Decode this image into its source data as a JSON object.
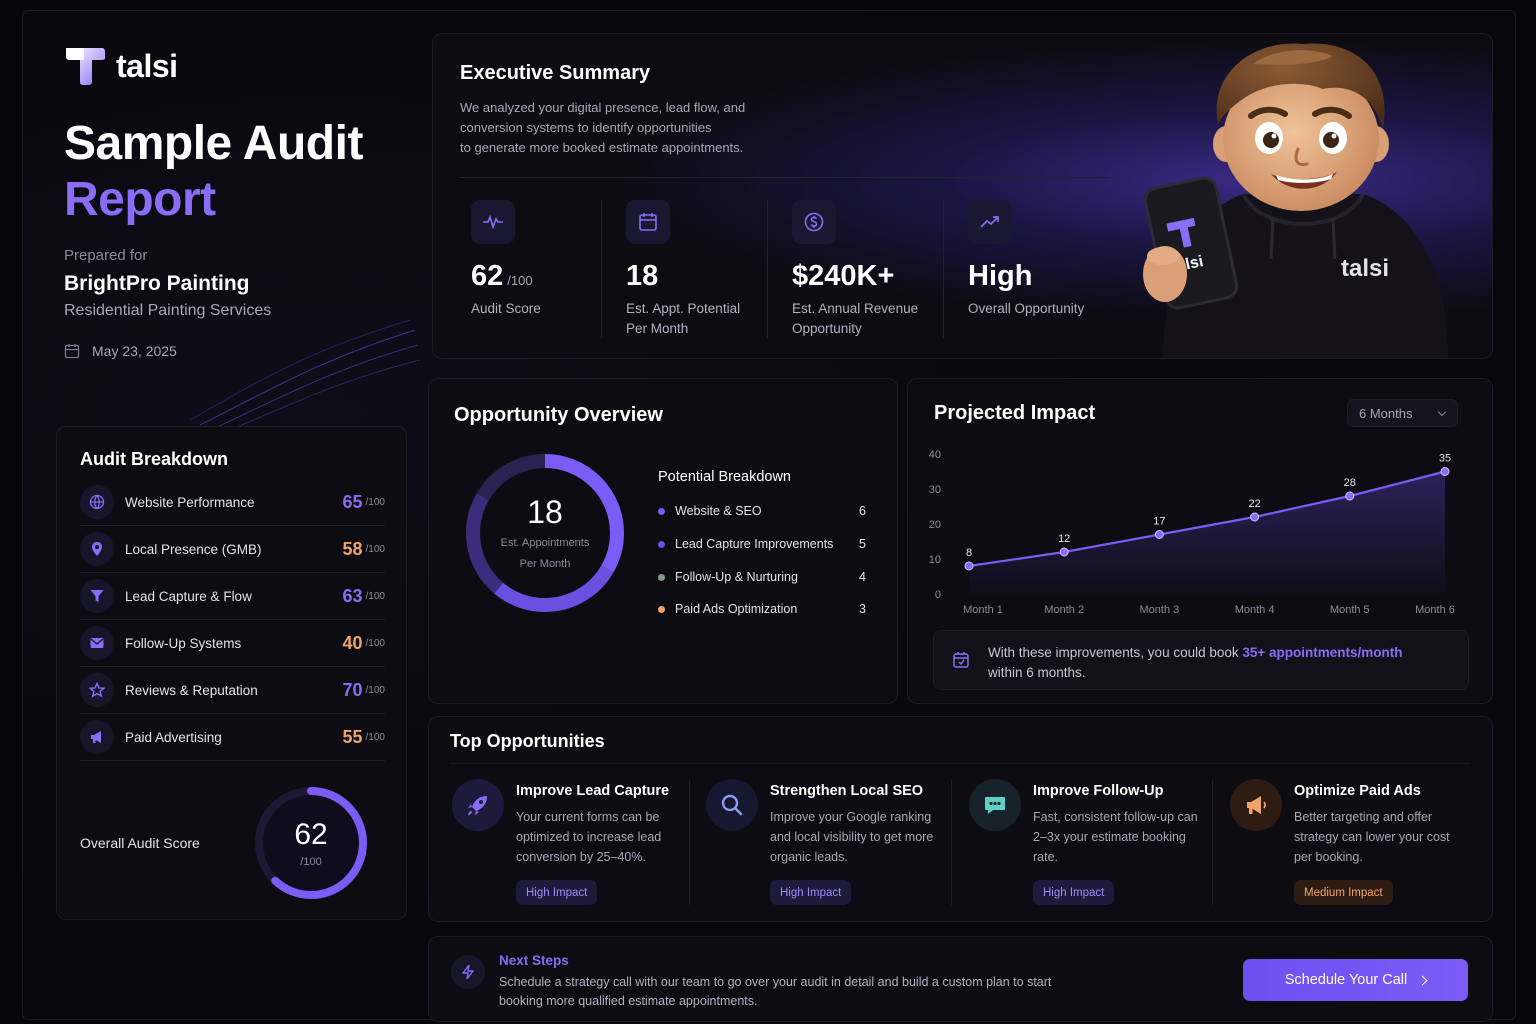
{
  "brand": {
    "name": "talsi"
  },
  "hero": {
    "title_line1": "Sample Audit",
    "title_line2": "Report",
    "prepared_label": "Prepared for",
    "client_name": "BrightPro Painting",
    "client_sub": "Residential Painting Services",
    "date": "May 23, 2025"
  },
  "audit_breakdown": {
    "title": "Audit Breakdown",
    "items": [
      {
        "label": "Website Performance",
        "score": "65",
        "max": "/100",
        "icon": "globe-icon",
        "color": "#8b6cf6"
      },
      {
        "label": "Local Presence (GMB)",
        "score": "58",
        "max": "/100",
        "icon": "map-pin-icon",
        "color": "#f0a46a"
      },
      {
        "label": "Lead Capture & Flow",
        "score": "63",
        "max": "/100",
        "icon": "funnel-icon",
        "color": "#8b6cf6"
      },
      {
        "label": "Follow-Up Systems",
        "score": "40",
        "max": "/100",
        "icon": "mail-icon",
        "color": "#f0a46a"
      },
      {
        "label": "Reviews & Reputation",
        "score": "70",
        "max": "/100",
        "icon": "star-icon",
        "color": "#8b6cf6"
      },
      {
        "label": "Paid Advertising",
        "score": "55",
        "max": "/100",
        "icon": "megaphone-icon",
        "color": "#f0a46a"
      }
    ],
    "overall_label": "Overall Audit Score",
    "overall_score": "62",
    "overall_max": "/100",
    "overall_fraction": 0.62
  },
  "executive_summary": {
    "title": "Executive Summary",
    "desc_line1": "We analyzed your digital presence, lead flow, and",
    "desc_line2": "conversion systems to identify opportunities",
    "desc_line3": "to generate more booked estimate appointments.",
    "metrics": [
      {
        "value": "62",
        "suffix": "/100",
        "label1": "Audit Score",
        "label2": "",
        "icon": "pulse-icon"
      },
      {
        "value": "18",
        "suffix": "",
        "label1": "Est. Appt. Potential",
        "label2": "Per Month",
        "icon": "calendar-icon"
      },
      {
        "value": "$240K+",
        "suffix": "",
        "label1": "Est. Annual Revenue",
        "label2": "Opportunity",
        "icon": "dollar-icon"
      },
      {
        "value": "High",
        "suffix": "",
        "label1": "Overall Opportunity",
        "label2": "",
        "icon": "trend-up-icon"
      }
    ],
    "mascot_phone_text": "talsi",
    "mascot_hoodie_text": "talsi"
  },
  "opportunity_overview": {
    "title": "Opportunity Overview",
    "donut_value": "18",
    "donut_label1": "Est. Appointments",
    "donut_label2": "Per Month",
    "breakdown_title": "Potential Breakdown",
    "items": [
      {
        "label": "Website & SEO",
        "value": 6,
        "color": "#7c5cf6"
      },
      {
        "label": "Lead Capture Improvements",
        "value": 5,
        "color": "#6b4fe0"
      },
      {
        "label": "Follow-Up & Nurturing",
        "value": 4,
        "color": "#7e9a8c"
      },
      {
        "label": "Paid Ads Optimization",
        "value": 3,
        "color": "#f0a46a"
      }
    ]
  },
  "projected_impact": {
    "title": "Projected Impact",
    "range_select": "6 Months",
    "note_prefix": "With these improvements, you could book",
    "note_highlight": "35+ appointments/month",
    "note_suffix": "within 6 months."
  },
  "chart_data": {
    "type": "line",
    "categories": [
      "Month 1",
      "Month 2",
      "Month 3",
      "Month 4",
      "Month 5",
      "Month 6"
    ],
    "values": [
      8,
      12,
      17,
      22,
      28,
      35
    ],
    "yticks": [
      0,
      10,
      20,
      30,
      40
    ],
    "ylim": [
      0,
      40
    ],
    "grid": false
  },
  "top_opportunities": {
    "title": "Top Opportunities",
    "items": [
      {
        "title": "Improve Lead Capture",
        "desc": "Your current forms can be optimized to increase lead conversion by 25–40%.",
        "badge": "High Impact",
        "level": "hi",
        "icon": "rocket-icon",
        "bg": "#1e1a3c"
      },
      {
        "title": "Strengthen Local SEO",
        "desc": "Improve your Google ranking and local visibility to get more organic leads.",
        "badge": "High Impact",
        "level": "hi",
        "icon": "magnifier-icon",
        "bg": "#15182e"
      },
      {
        "title": "Improve Follow-Up",
        "desc": "Fast, consistent follow-up can 2–3x your estimate booking rate.",
        "badge": "High Impact",
        "level": "hi",
        "icon": "chat-icon",
        "bg": "#17222a"
      },
      {
        "title": "Optimize Paid Ads",
        "desc": "Better targeting and offer strategy can lower your cost per booking.",
        "badge": "Medium Impact",
        "level": "med",
        "icon": "megaphone-icon",
        "bg": "#2e1c12"
      }
    ]
  },
  "next_steps": {
    "title": "Next Steps",
    "desc": "Schedule a strategy call with our team to go over your audit in detail and build a custom plan to start booking more qualified estimate appointments.",
    "cta": "Schedule Your Call"
  }
}
